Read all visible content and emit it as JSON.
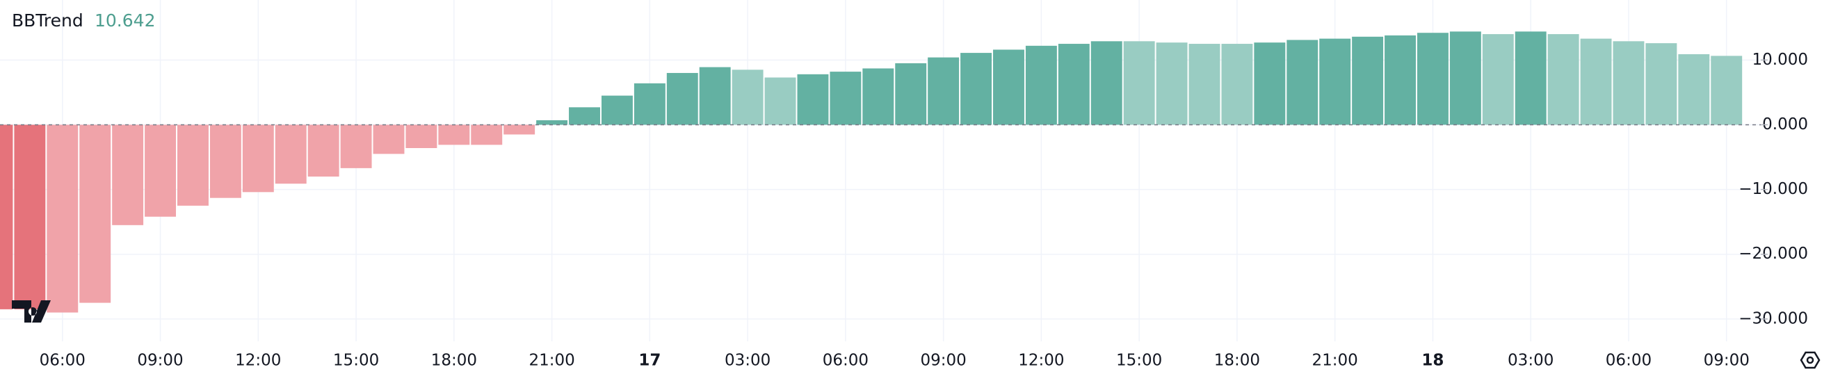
{
  "chart_data": {
    "type": "bar",
    "title": "BBTrend",
    "categories": [
      null,
      null,
      "06:00",
      null,
      null,
      "09:00",
      null,
      null,
      "12:00",
      null,
      null,
      "15:00",
      null,
      null,
      "18:00",
      null,
      null,
      "21:00",
      null,
      null,
      "17",
      null,
      null,
      "03:00",
      null,
      null,
      "06:00",
      null,
      null,
      "09:00",
      null,
      null,
      "12:00",
      null,
      null,
      "15:00",
      null,
      null,
      "18:00",
      null,
      null,
      "21:00",
      null,
      null,
      "18",
      null,
      null,
      "03:00",
      null,
      null,
      "06:00",
      null,
      null,
      "09:00"
    ],
    "series": [
      {
        "name": "BBTrend",
        "values": [
          -28.5,
          -28.5,
          -29,
          -27.5,
          -15.5,
          -14.2,
          -12.5,
          -11.3,
          -10.4,
          -9.1,
          -8.0,
          -6.7,
          -4.5,
          -3.6,
          -3.1,
          -3.1,
          -1.5,
          0.7,
          2.7,
          4.5,
          6.4,
          8.0,
          8.9,
          8.5,
          7.3,
          7.8,
          8.2,
          8.7,
          9.5,
          10.4,
          11.1,
          11.6,
          12.2,
          12.5,
          12.9,
          12.9,
          12.7,
          12.5,
          12.5,
          12.7,
          13.1,
          13.3,
          13.6,
          13.8,
          14.2,
          14.4,
          14.0,
          14.4,
          14.0,
          13.3,
          12.9,
          12.6,
          10.9,
          10.642
        ],
        "colors": [
          "#e5737b",
          "#e5737b",
          "#f0a3a9",
          "#f0a3a9",
          "#f0a3a9",
          "#f0a3a9",
          "#f0a3a9",
          "#f0a3a9",
          "#f0a3a9",
          "#f0a3a9",
          "#f0a3a9",
          "#f0a3a9",
          "#f0a3a9",
          "#f0a3a9",
          "#f0a3a9",
          "#f0a3a9",
          "#f0a3a9",
          "#63b1a2",
          "#63b1a2",
          "#63b1a2",
          "#63b1a2",
          "#63b1a2",
          "#63b1a2",
          "#99ccc2",
          "#99ccc2",
          "#63b1a2",
          "#63b1a2",
          "#63b1a2",
          "#63b1a2",
          "#63b1a2",
          "#63b1a2",
          "#63b1a2",
          "#63b1a2",
          "#63b1a2",
          "#63b1a2",
          "#99ccc2",
          "#99ccc2",
          "#99ccc2",
          "#99ccc2",
          "#63b1a2",
          "#63b1a2",
          "#63b1a2",
          "#63b1a2",
          "#63b1a2",
          "#63b1a2",
          "#63b1a2",
          "#99ccc2",
          "#63b1a2",
          "#99ccc2",
          "#99ccc2",
          "#99ccc2",
          "#99ccc2",
          "#99ccc2",
          "#99ccc2"
        ]
      }
    ],
    "ylim": [
      -33.45,
      19.27
    ],
    "yticks": [
      {
        "value": 10,
        "label": "10.000"
      },
      {
        "value": 0,
        "label": "0.000"
      },
      {
        "value": -10,
        "label": "−10.000"
      },
      {
        "value": -20,
        "label": "−20.000"
      },
      {
        "value": -30,
        "label": "−30.000"
      }
    ],
    "grid": true
  }
}
